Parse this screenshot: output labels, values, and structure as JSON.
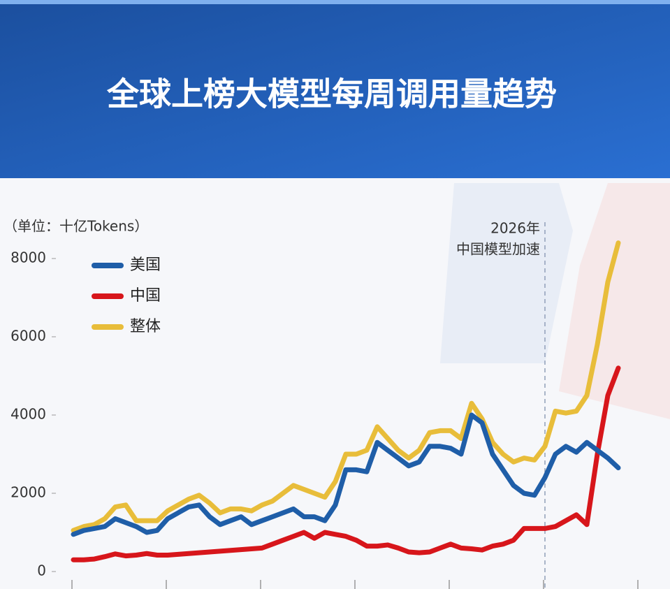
{
  "chart_data": {
    "type": "line",
    "title": "全球上榜大模型每周调用量趋势",
    "y_label": "（单位：十亿Tokens）",
    "annotation": [
      "2026年",
      "中国模型加速"
    ],
    "categories": [
      null,
      null,
      null,
      null,
      null,
      null,
      null,
      null,
      null,
      null,
      null,
      null,
      null,
      null,
      null,
      null,
      null,
      null,
      null,
      null,
      null,
      null,
      null,
      null,
      null,
      null,
      null,
      null,
      null,
      null,
      null,
      null,
      null,
      null,
      null,
      null,
      null,
      null,
      null,
      null,
      null,
      null,
      null,
      null,
      null,
      null,
      null,
      null,
      null,
      null,
      null,
      null,
      null
    ],
    "series": [
      {
        "name": "美国",
        "color": "#1f5ea8",
        "values": [
          950,
          1050,
          1100,
          1150,
          1350,
          1250,
          1150,
          1000,
          1050,
          1350,
          1500,
          1650,
          1700,
          1400,
          1200,
          1300,
          1400,
          1200,
          1300,
          1400,
          1500,
          1600,
          1400,
          1400,
          1300,
          1700,
          2600,
          2600,
          2550,
          3300,
          3100,
          2900,
          2700,
          2800,
          3200,
          3200,
          3150,
          3000,
          4000,
          3800,
          3000,
          2600,
          2200,
          2000,
          1950,
          2400,
          3000,
          3200,
          3050,
          3300,
          3100,
          2900,
          2650
        ]
      },
      {
        "name": "中国",
        "color": "#d7161b",
        "values": [
          300,
          300,
          320,
          380,
          450,
          400,
          420,
          460,
          420,
          420,
          440,
          460,
          480,
          500,
          520,
          540,
          560,
          580,
          600,
          700,
          800,
          900,
          1000,
          850,
          1000,
          950,
          900,
          800,
          650,
          650,
          680,
          600,
          500,
          480,
          500,
          600,
          700,
          600,
          580,
          550,
          650,
          700,
          800,
          1100,
          1100,
          1100,
          1150,
          1300,
          1450,
          1200,
          3000,
          4500,
          5200
        ]
      },
      {
        "name": "整体",
        "color": "#e8bd3a",
        "values": [
          1050,
          1150,
          1200,
          1350,
          1650,
          1700,
          1300,
          1300,
          1300,
          1550,
          1700,
          1850,
          1950,
          1750,
          1500,
          1600,
          1600,
          1550,
          1700,
          1800,
          2000,
          2200,
          2100,
          2000,
          1900,
          2300,
          3000,
          3000,
          3100,
          3700,
          3400,
          3100,
          2900,
          3100,
          3550,
          3600,
          3600,
          3400,
          4300,
          3900,
          3300,
          3000,
          2800,
          2900,
          2850,
          3200,
          4100,
          4050,
          4100,
          4500,
          5800,
          7400,
          8400
        ]
      }
    ],
    "ylim": [
      0,
      9000
    ],
    "yticks": [
      0,
      2000,
      4000,
      6000,
      8000
    ]
  }
}
